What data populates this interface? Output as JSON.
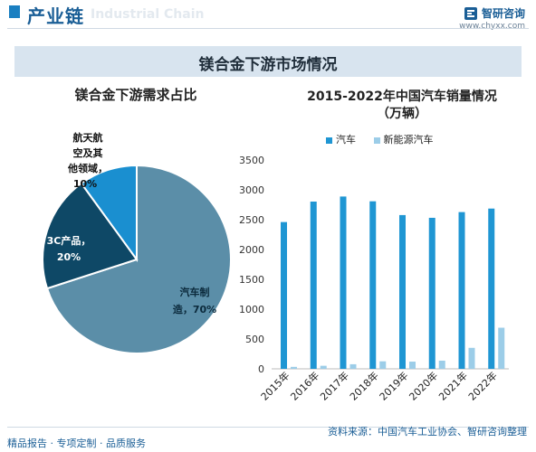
{
  "header": {
    "title": "产业链",
    "title_en": "Industrial Chain",
    "brand_name": "智研咨询",
    "brand_url": "www.chyxx.com"
  },
  "banner": {
    "title": "镁合金下游市场情况"
  },
  "colors": {
    "pie": [
      "#5b8ea8",
      "#0e4866",
      "#1a8fd0"
    ],
    "car": "#1f96d3",
    "nev": "#9ccde8",
    "brand": "#1a5e96"
  },
  "chart_data": [
    {
      "type": "pie",
      "title": "镁合金下游需求占比",
      "slices": [
        {
          "label": "汽车制造，70%",
          "value": 70
        },
        {
          "label": "3C产品，20%",
          "value": 20
        },
        {
          "label": "航天航空及其他领域，10%",
          "value": 10
        }
      ]
    },
    {
      "type": "bar",
      "title": "2015-2022年中国汽车销量情况",
      "subtitle": "（万辆）",
      "categories": [
        "2015年",
        "2016年",
        "2017年",
        "2018年",
        "2019年",
        "2020年",
        "2021年",
        "2022年"
      ],
      "series": [
        {
          "name": "汽车",
          "values": [
            2460,
            2803,
            2888,
            2808,
            2577,
            2531,
            2627,
            2686
          ]
        },
        {
          "name": "新能源汽车",
          "values": [
            33,
            51,
            77,
            126,
            121,
            137,
            352,
            689
          ]
        }
      ],
      "ylim": [
        0,
        3500
      ],
      "yticks": [
        0,
        500,
        1000,
        1500,
        2000,
        2500,
        3000,
        3500
      ],
      "legend": "top"
    }
  ],
  "pie_labels": {
    "s0_line1": "汽车制",
    "s0_line2": "造，70%",
    "s1_line1": "3C产品，",
    "s1_line2": "20%",
    "s2_line1": "航天航",
    "s2_line2": "空及其",
    "s2_line3": "他领域，",
    "s2_line4": "10%"
  },
  "footer": {
    "left": "精品报告 · 专项定制 · 品质服务",
    "source": "资料来源：中国汽车工业协会、智研咨询整理"
  }
}
